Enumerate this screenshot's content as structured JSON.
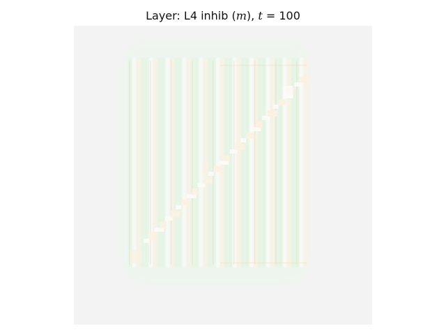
{
  "title": {
    "prefix": "Layer: L4 inhib (",
    "var": "m",
    "middle": "), ",
    "tvar": "t",
    "suffix": " = 100"
  },
  "image": {
    "kind": "activation-heatmap",
    "background_color": "#f3f3f3",
    "glow_color": "#eef6ee",
    "stripe_green": "#e2f5e2",
    "stripe_cream": "#fbf1e2",
    "stripe_white": "#fbfbf7",
    "accent_orange": "#f4d6b8",
    "grid": "off",
    "axes_ticks": "hidden"
  }
}
